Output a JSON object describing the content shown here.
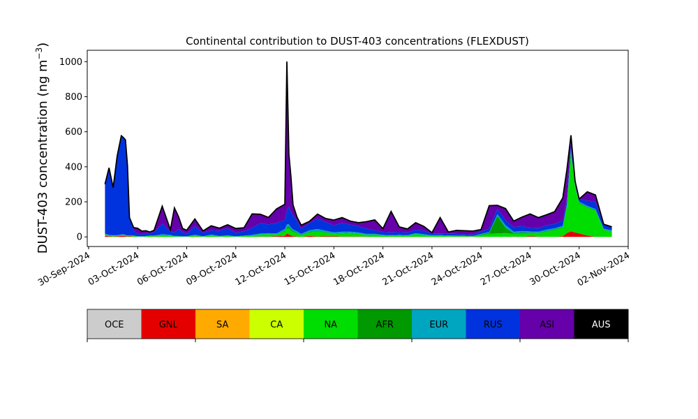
{
  "chart_data": {
    "type": "area",
    "title": "Continental contribution to DUST-403 concentrations (FLEXDUST)",
    "ylabel": "DUST-403 concentration (ng m⁻³)",
    "xlabel": "",
    "ylim": [
      -55,
      1065
    ],
    "xlim": [
      "2024-09-29T22:00",
      "2024-11-02T00:00"
    ],
    "yticks": [
      0,
      200,
      400,
      600,
      800,
      1000
    ],
    "xticks": [
      "30-Sep-2024",
      "03-Oct-2024",
      "06-Oct-2024",
      "09-Oct-2024",
      "12-Oct-2024",
      "15-Oct-2024",
      "18-Oct-2024",
      "21-Oct-2024",
      "24-Oct-2024",
      "27-Oct-2024",
      "30-Oct-2024",
      "02-Nov-2024"
    ],
    "grid": false,
    "legend": "colorbar-below",
    "x": [
      "2024-10-01",
      "2024-10-01T06:00",
      "2024-10-01T12:00",
      "2024-10-01T18:00",
      "2024-10-02",
      "2024-10-02T03:00",
      "2024-10-02T06:00",
      "2024-10-02T09:00",
      "2024-10-02T12:00",
      "2024-10-02T18:00",
      "2024-10-03",
      "2024-10-03T06:00",
      "2024-10-03T12:00",
      "2024-10-03T18:00",
      "2024-10-04",
      "2024-10-04T12:00",
      "2024-10-05",
      "2024-10-05T06:00",
      "2024-10-05T12:00",
      "2024-10-05T18:00",
      "2024-10-06",
      "2024-10-06T12:00",
      "2024-10-07",
      "2024-10-07T12:00",
      "2024-10-08",
      "2024-10-08T12:00",
      "2024-10-09",
      "2024-10-09T12:00",
      "2024-10-10",
      "2024-10-10T12:00",
      "2024-10-11",
      "2024-10-11T12:00",
      "2024-10-12",
      "2024-10-12T03:00",
      "2024-10-12T06:00",
      "2024-10-12T09:00",
      "2024-10-12T12:00",
      "2024-10-12T18:00",
      "2024-10-13",
      "2024-10-13T12:00",
      "2024-10-14",
      "2024-10-14T12:00",
      "2024-10-15",
      "2024-10-15T12:00",
      "2024-10-16",
      "2024-10-16T12:00",
      "2024-10-17",
      "2024-10-17T12:00",
      "2024-10-18",
      "2024-10-18T12:00",
      "2024-10-19",
      "2024-10-19T12:00",
      "2024-10-20",
      "2024-10-20T12:00",
      "2024-10-21",
      "2024-10-21T12:00",
      "2024-10-22",
      "2024-10-22T12:00",
      "2024-10-23",
      "2024-10-23T12:00",
      "2024-10-24",
      "2024-10-24T12:00",
      "2024-10-25",
      "2024-10-25T12:00",
      "2024-10-26",
      "2024-10-26T12:00",
      "2024-10-27",
      "2024-10-27T12:00",
      "2024-10-28",
      "2024-10-28T12:00",
      "2024-10-29",
      "2024-10-29T06:00",
      "2024-10-29T12:00",
      "2024-10-29T18:00",
      "2024-10-30",
      "2024-10-30T12:00",
      "2024-10-31",
      "2024-10-31T12:00",
      "2024-11-01"
    ],
    "series": [
      {
        "name": "OCE",
        "color": "#cccccc",
        "values": [
          0,
          0,
          0,
          0,
          0,
          0,
          0,
          0,
          0,
          0,
          0,
          0,
          0,
          0,
          0,
          0,
          0,
          0,
          0,
          0,
          0,
          0,
          0,
          0,
          0,
          0,
          0,
          0,
          0,
          0,
          0,
          0,
          0,
          0,
          0,
          0,
          0,
          0,
          0,
          0,
          0,
          0,
          0,
          0,
          0,
          0,
          0,
          0,
          0,
          0,
          0,
          0,
          0,
          0,
          0,
          0,
          0,
          0,
          0,
          0,
          0,
          0,
          0,
          0,
          0,
          0,
          0,
          0,
          0,
          0,
          0,
          0,
          0,
          0,
          0,
          0,
          0,
          0,
          0
        ]
      },
      {
        "name": "GNL",
        "color": "#e50000",
        "values": [
          6,
          3,
          2,
          3,
          5,
          6,
          4,
          2,
          3,
          1,
          0,
          0,
          0,
          0,
          2,
          0,
          0,
          0,
          0,
          0,
          0,
          1,
          0,
          0,
          0,
          0,
          0,
          0,
          0,
          2,
          1,
          4,
          6,
          18,
          15,
          8,
          4,
          2,
          0,
          6,
          2,
          4,
          3,
          2,
          2,
          2,
          1,
          0,
          0,
          0,
          0,
          0,
          0,
          0,
          0,
          0,
          0,
          0,
          0,
          0,
          0,
          0,
          0,
          0,
          2,
          0,
          4,
          1,
          0,
          0,
          4,
          22,
          32,
          25,
          20,
          8,
          0,
          0,
          0
        ]
      },
      {
        "name": "SA",
        "color": "#ffaa00",
        "values": [
          0,
          0,
          0,
          0,
          0,
          0,
          0,
          0,
          0,
          0,
          0,
          0,
          0,
          0,
          0,
          0,
          0,
          0,
          0,
          0,
          0,
          0,
          0,
          0,
          0,
          0,
          0,
          0,
          0,
          0,
          0,
          0,
          0,
          0,
          0,
          0,
          0,
          0,
          0,
          0,
          0,
          0,
          0,
          0,
          0,
          0,
          0,
          0,
          0,
          0,
          0,
          0,
          0,
          0,
          0,
          0,
          0,
          0,
          0,
          0,
          0,
          0,
          0,
          0,
          0,
          0,
          0,
          0,
          0,
          0,
          0,
          0,
          0,
          0,
          0,
          0,
          0,
          0,
          0
        ]
      },
      {
        "name": "CA",
        "color": "#ccff00",
        "values": [
          0,
          0,
          0,
          0,
          0,
          0,
          0,
          0,
          0,
          0,
          0,
          0,
          0,
          0,
          0,
          0,
          0,
          0,
          0,
          0,
          0,
          0,
          0,
          0,
          0,
          0,
          0,
          0,
          0,
          0,
          0,
          0,
          0,
          0,
          0,
          0,
          0,
          0,
          0,
          0,
          0,
          0,
          0,
          0,
          0,
          0,
          0,
          0,
          0,
          0,
          0,
          0,
          0,
          0,
          0,
          0,
          0,
          0,
          0,
          0,
          0,
          0,
          0,
          0,
          0,
          0,
          0,
          0,
          0,
          0,
          0,
          0,
          0,
          0,
          0,
          0,
          0,
          0,
          0
        ]
      },
      {
        "name": "NA",
        "color": "#00dd00",
        "values": [
          8,
          5,
          4,
          4,
          5,
          5,
          4,
          3,
          3,
          4,
          2,
          2,
          3,
          5,
          3,
          10,
          8,
          3,
          3,
          2,
          2,
          8,
          2,
          10,
          3,
          6,
          2,
          5,
          8,
          12,
          15,
          10,
          25,
          30,
          35,
          28,
          25,
          18,
          10,
          20,
          30,
          20,
          15,
          18,
          20,
          16,
          10,
          12,
          8,
          6,
          8,
          6,
          15,
          10,
          5,
          6,
          4,
          3,
          4,
          2,
          10,
          18,
          20,
          22,
          15,
          20,
          18,
          20,
          30,
          40,
          50,
          150,
          450,
          260,
          170,
          160,
          150,
          40,
          30
        ]
      },
      {
        "name": "AFR",
        "color": "#009900",
        "values": [
          1,
          1,
          1,
          1,
          1,
          1,
          1,
          1,
          1,
          1,
          0,
          0,
          0,
          0,
          0,
          0,
          0,
          0,
          0,
          0,
          0,
          0,
          0,
          0,
          0,
          0,
          0,
          0,
          0,
          0,
          0,
          1,
          5,
          8,
          10,
          8,
          6,
          4,
          2,
          4,
          3,
          3,
          2,
          2,
          2,
          2,
          1,
          1,
          1,
          1,
          1,
          1,
          1,
          1,
          1,
          1,
          2,
          2,
          1,
          1,
          3,
          5,
          100,
          30,
          5,
          5,
          3,
          3,
          3,
          3,
          3,
          5,
          8,
          5,
          5,
          3,
          3,
          2,
          2
        ]
      },
      {
        "name": "EUR",
        "color": "#00a5c0",
        "values": [
          3,
          2,
          2,
          2,
          3,
          3,
          3,
          2,
          2,
          2,
          2,
          1,
          2,
          3,
          2,
          5,
          3,
          2,
          2,
          1,
          1,
          3,
          2,
          3,
          2,
          3,
          1,
          2,
          3,
          5,
          5,
          5,
          10,
          15,
          12,
          10,
          8,
          8,
          5,
          8,
          10,
          8,
          6,
          8,
          6,
          6,
          5,
          4,
          3,
          3,
          3,
          3,
          5,
          4,
          3,
          3,
          2,
          2,
          2,
          2,
          4,
          5,
          10,
          15,
          8,
          8,
          6,
          6,
          8,
          6,
          6,
          8,
          10,
          8,
          6,
          6,
          6,
          5,
          5
        ]
      },
      {
        "name": "RUS",
        "color": "#0033dd",
        "values": [
          280,
          380,
          270,
          450,
          560,
          550,
          540,
          400,
          100,
          30,
          15,
          10,
          15,
          15,
          20,
          60,
          20,
          20,
          40,
          25,
          15,
          50,
          20,
          25,
          30,
          40,
          20,
          25,
          40,
          60,
          50,
          60,
          50,
          80,
          100,
          90,
          80,
          60,
          30,
          40,
          60,
          50,
          40,
          50,
          40,
          35,
          30,
          20,
          15,
          15,
          15,
          15,
          20,
          20,
          10,
          10,
          10,
          10,
          8,
          8,
          15,
          20,
          30,
          30,
          25,
          30,
          20,
          20,
          25,
          25,
          30,
          30,
          40,
          10,
          15,
          30,
          40,
          25,
          20
        ]
      },
      {
        "name": "ASI",
        "color": "#6600aa",
        "values": [
          3,
          3,
          2,
          2,
          3,
          2,
          2,
          2,
          1,
          15,
          30,
          20,
          15,
          5,
          10,
          100,
          10,
          140,
          70,
          20,
          20,
          40,
          10,
          25,
          15,
          20,
          25,
          20,
          80,
          50,
          40,
          80,
          90,
          850,
          300,
          200,
          60,
          20,
          20,
          10,
          25,
          20,
          30,
          30,
          20,
          20,
          40,
          60,
          20,
          120,
          30,
          20,
          40,
          25,
          5,
          90,
          10,
          20,
          20,
          20,
          10,
          130,
          20,
          65,
          35,
          50,
          80,
          60,
          60,
          70,
          130,
          170,
          40,
          10,
          0,
          50,
          40,
          0,
          0
        ]
      },
      {
        "name": "AUS",
        "color": "#000000",
        "values": [
          0,
          0,
          0,
          0,
          0,
          0,
          0,
          0,
          0,
          0,
          0,
          0,
          0,
          0,
          0,
          0,
          0,
          0,
          0,
          0,
          0,
          0,
          0,
          0,
          0,
          0,
          0,
          0,
          0,
          0,
          0,
          0,
          0,
          0,
          0,
          0,
          0,
          0,
          0,
          0,
          0,
          0,
          0,
          0,
          0,
          0,
          0,
          0,
          0,
          0,
          0,
          0,
          0,
          0,
          0,
          0,
          0,
          0,
          0,
          0,
          0,
          0,
          0,
          0,
          0,
          0,
          0,
          0,
          0,
          0,
          0,
          0,
          0,
          0,
          0,
          0,
          0,
          0,
          0
        ]
      }
    ]
  },
  "colorbar": [
    {
      "label": "OCE",
      "color": "#cccccc",
      "text_color": "#000000"
    },
    {
      "label": "GNL",
      "color": "#e50000",
      "text_color": "#000000"
    },
    {
      "label": "SA",
      "color": "#ffaa00",
      "text_color": "#000000"
    },
    {
      "label": "CA",
      "color": "#ccff00",
      "text_color": "#000000"
    },
    {
      "label": "NA",
      "color": "#00dd00",
      "text_color": "#000000"
    },
    {
      "label": "AFR",
      "color": "#009900",
      "text_color": "#000000"
    },
    {
      "label": "EUR",
      "color": "#00a5c0",
      "text_color": "#000000"
    },
    {
      "label": "RUS",
      "color": "#0033dd",
      "text_color": "#000000"
    },
    {
      "label": "ASI",
      "color": "#6600aa",
      "text_color": "#000000"
    },
    {
      "label": "AUS",
      "color": "#000000",
      "text_color": "#ffffff"
    }
  ]
}
